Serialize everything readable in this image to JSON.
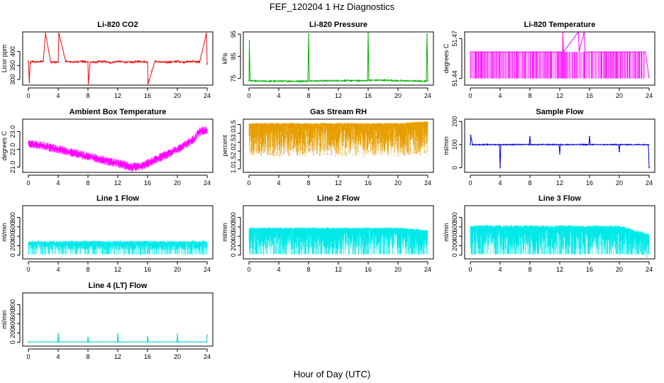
{
  "title": "FEF_120204  1 Hz Diagnostics",
  "xlabel": "Hour of Day (UTC)",
  "chart_data": [
    {
      "type": "line",
      "title": "Li-820 CO2",
      "ylabel": "Licor ppm",
      "color": "#e81010",
      "xlim": [
        0,
        24
      ],
      "xticks": [
        0,
        4,
        8,
        12,
        16,
        20,
        24
      ],
      "ylim": [
        280,
        470
      ],
      "yticks": [
        300,
        350,
        400
      ],
      "series": [
        {
          "x": [
            0,
            0.12,
            0.25,
            0.5,
            1,
            2,
            2.3,
            3,
            4,
            4.1,
            5,
            6,
            7,
            8,
            8.05,
            8.3,
            9,
            10,
            11,
            12,
            13,
            14,
            15,
            16,
            16.05,
            17,
            18,
            19,
            20,
            21,
            22,
            23,
            23.9,
            24
          ],
          "y": [
            365,
            290,
            360,
            365,
            362,
            365,
            465,
            362,
            362,
            465,
            365,
            362,
            365,
            362,
            285,
            362,
            362,
            365,
            360,
            365,
            362,
            362,
            365,
            362,
            285,
            365,
            362,
            362,
            365,
            362,
            365,
            362,
            465,
            355
          ]
        }
      ]
    },
    {
      "type": "line",
      "title": "Li-820 Pressure",
      "ylabel": "kPa",
      "color": "#00b400",
      "xlim": [
        0,
        24
      ],
      "xticks": [
        0,
        4,
        8,
        12,
        16,
        20,
        24
      ],
      "ylim": [
        72,
        96
      ],
      "yticks": [
        75,
        85,
        95
      ],
      "series": [
        {
          "x": [
            0,
            0.05,
            0.15,
            1,
            4,
            7.9,
            8,
            8.1,
            9,
            12,
            15.9,
            16,
            16.1,
            18,
            20,
            23.8,
            23.9,
            24
          ],
          "y": [
            74,
            92,
            74,
            73.8,
            73.8,
            73.8,
            95,
            74,
            73.9,
            74,
            74,
            95.5,
            74.2,
            74.2,
            74,
            73.8,
            95,
            74
          ]
        }
      ]
    },
    {
      "type": "line",
      "title": "Li-820 Temperature",
      "ylabel": "degrees C",
      "color": "#ff00ff",
      "xlim": [
        0,
        24
      ],
      "xticks": [
        0,
        4,
        8,
        12,
        16,
        20,
        24
      ],
      "ylim": [
        51.435,
        51.475
      ],
      "yticks": [
        51.44,
        51.47
      ],
      "ytick_labels": [
        "51.44",
        "51.47"
      ],
      "series": [
        {
          "x": [
            0,
            12.4,
            12.4,
            12.5,
            14.5,
            14.6,
            15.3,
            15.4,
            23.5,
            24
          ],
          "y": [
            51.46,
            51.46,
            51.475,
            51.46,
            51.475,
            51.46,
            51.475,
            51.46,
            51.46,
            51.44
          ]
        }
      ]
    },
    {
      "type": "line",
      "title": "Ambient Box Temperature",
      "ylabel": "degrees C",
      "color": "#ff00ff",
      "xlim": [
        0,
        24
      ],
      "xticks": [
        0,
        4,
        8,
        12,
        16,
        20,
        24
      ],
      "ylim": [
        20.7,
        23.7
      ],
      "yticks": [
        21.0,
        22.0,
        23.0
      ],
      "ytick_labels": [
        "21.0",
        "22.0",
        "23.0"
      ],
      "series": [
        {
          "x": [
            0,
            2,
            4,
            6,
            8,
            10,
            12,
            14,
            15,
            16,
            18,
            20,
            22,
            23,
            24
          ],
          "y": [
            22.3,
            22.2,
            22.0,
            21.8,
            21.6,
            21.4,
            21.2,
            21.0,
            21.0,
            21.2,
            21.6,
            22.0,
            22.5,
            23.0,
            23.1
          ]
        }
      ]
    },
    {
      "type": "line",
      "title": "Gas Stream RH",
      "ylabel": "percent",
      "color": "#e8a000",
      "xlim": [
        0,
        24
      ],
      "xticks": [
        0,
        4,
        8,
        12,
        16,
        20,
        24
      ],
      "ylim": [
        0.8,
        3.8
      ],
      "yticks": [
        1.0,
        1.5,
        2.0,
        2.5,
        3.0,
        3.5
      ],
      "ytick_labels": [
        "1.0",
        "1.5",
        "2.0",
        "2.5",
        "3.0",
        "3.5"
      ],
      "series": [
        {
          "x": [
            0,
            4,
            8,
            12,
            16,
            20,
            24
          ],
          "y": [
            3.5,
            3.5,
            3.5,
            3.5,
            3.5,
            3.5,
            3.6
          ]
        }
      ]
    },
    {
      "type": "line",
      "title": "Sample Flow",
      "ylabel": "ml/min",
      "color": "#0000e0",
      "xlim": [
        0,
        24
      ],
      "xticks": [
        0,
        4,
        8,
        12,
        16,
        20,
        24
      ],
      "ylim": [
        -20,
        210
      ],
      "yticks": [
        0,
        100,
        200
      ],
      "series": [
        {
          "x": [
            0,
            0.05,
            0.3,
            3.9,
            4,
            4.1,
            7.9,
            8,
            8.1,
            11.9,
            12,
            12.1,
            15.9,
            16,
            16.1,
            19.9,
            20,
            20.1,
            23.9,
            24
          ],
          "y": [
            100,
            140,
            100,
            100,
            0,
            100,
            100,
            135,
            100,
            100,
            60,
            100,
            100,
            135,
            100,
            100,
            70,
            100,
            100,
            0
          ]
        }
      ]
    },
    {
      "type": "line",
      "title": "Line 1 Flow",
      "ylabel": "ml/min",
      "color": "#00e8e8",
      "xlim": [
        0,
        24
      ],
      "xticks": [
        0,
        4,
        8,
        12,
        16,
        20,
        24
      ],
      "ylim": [
        -80,
        1050
      ],
      "yticks": [
        0,
        200,
        400,
        600,
        800
      ],
      "series": [
        {
          "x": [
            0,
            4,
            8,
            12,
            16,
            20,
            24
          ],
          "y": [
            250,
            250,
            250,
            250,
            250,
            250,
            250
          ]
        }
      ]
    },
    {
      "type": "line",
      "title": "Line 2 Flow",
      "ylabel": "ml/min",
      "color": "#00e8e8",
      "xlim": [
        0,
        24
      ],
      "xticks": [
        0,
        4,
        8,
        12,
        16,
        20,
        24
      ],
      "ylim": [
        -80,
        1050
      ],
      "yticks": [
        0,
        200,
        400,
        600,
        800
      ],
      "series": [
        {
          "x": [
            0,
            4,
            8,
            12,
            16,
            20,
            24
          ],
          "y": [
            550,
            550,
            550,
            550,
            550,
            550,
            500
          ]
        }
      ]
    },
    {
      "type": "line",
      "title": "Line 3 Flow",
      "ylabel": "ml/min",
      "color": "#00e8e8",
      "xlim": [
        0,
        24
      ],
      "xticks": [
        0,
        4,
        8,
        12,
        16,
        20,
        24
      ],
      "ylim": [
        -80,
        1050
      ],
      "yticks": [
        0,
        200,
        400,
        600,
        800
      ],
      "series": [
        {
          "x": [
            0,
            4,
            8,
            12,
            16,
            20,
            24
          ],
          "y": [
            580,
            580,
            580,
            580,
            580,
            580,
            400
          ]
        }
      ]
    },
    {
      "type": "line",
      "title": "Line 4 (LT) Flow",
      "ylabel": "ml/min",
      "color": "#00d0d0",
      "xlim": [
        0,
        24
      ],
      "xticks": [
        0,
        4,
        8,
        12,
        16,
        20,
        24
      ],
      "ylim": [
        -80,
        1050
      ],
      "yticks": [
        0,
        200,
        400,
        600,
        800
      ],
      "series": [
        {
          "x": [
            0,
            3.95,
            4,
            4.1,
            7.95,
            8,
            8.1,
            11.95,
            12,
            12.1,
            15.95,
            16,
            16.1,
            19.95,
            20,
            20.1,
            23.95,
            24
          ],
          "y": [
            10,
            10,
            180,
            10,
            10,
            110,
            10,
            10,
            180,
            10,
            10,
            120,
            10,
            10,
            170,
            10,
            10,
            150
          ]
        }
      ]
    }
  ]
}
